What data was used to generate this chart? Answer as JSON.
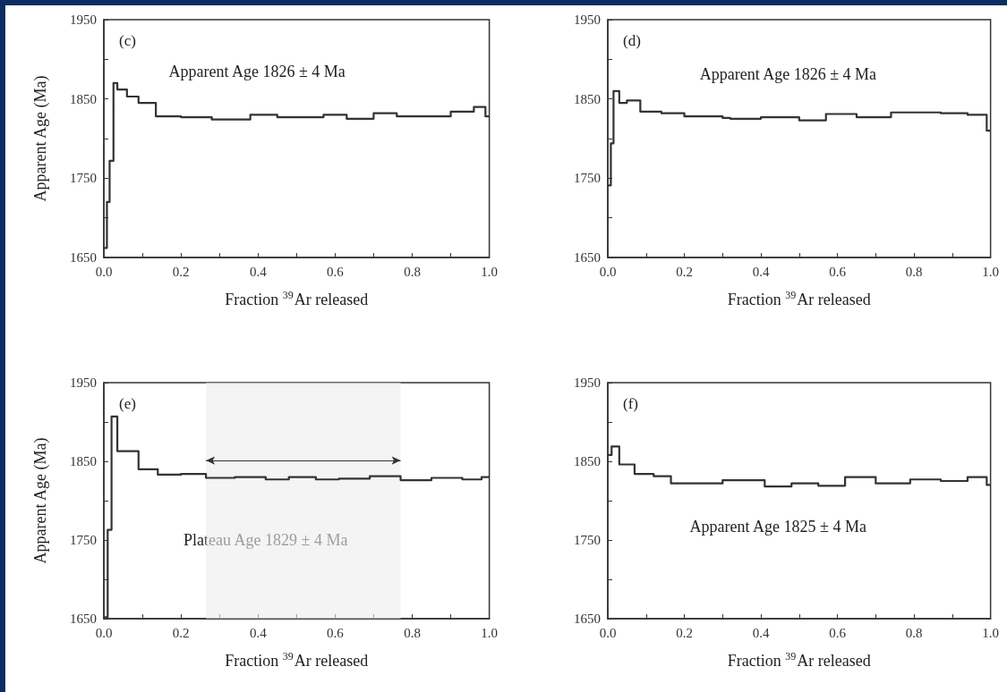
{
  "chart_data": [
    {
      "type": "step",
      "title": "(c)",
      "xlabel": "Fraction $^{39}$Ar released",
      "ylabel": "Apparent Age (Ma)",
      "annotations": [
        "Apparent Age 1826 ± 4 Ma"
      ],
      "series": [
        {
          "color": "#333333",
          "x": [
            0,
            0.008,
            0.015,
            0.025,
            0.035,
            0.06,
            0.09,
            0.135,
            0.2,
            0.28,
            0.38,
            0.45,
            0.5,
            0.57,
            0.63,
            0.7,
            0.76,
            0.83,
            0.9,
            0.96,
            0.99,
            1.0
          ],
          "values": [
            1662,
            1720,
            1772,
            1870,
            1862,
            1853,
            1845,
            1828,
            1827,
            1824,
            1830,
            1827,
            1827,
            1830,
            1825,
            1832,
            1828,
            1828,
            1834,
            1840,
            1828,
            1828
          ]
        }
      ],
      "xlim": [
        0,
        1
      ],
      "ylim": [
        1650,
        1950
      ],
      "xticks": [
        {
          "value": 0,
          "label": "0.0"
        },
        {
          "value": 0.1,
          "label": null
        },
        0.2,
        {
          "value": 0.3,
          "label": null
        },
        0.4,
        {
          "value": 0.5,
          "label": null
        },
        0.6,
        {
          "value": 0.7,
          "label": null
        },
        0.8,
        {
          "value": 0.9,
          "label": null
        },
        {
          "value": 1,
          "label": "1.0"
        }
      ],
      "yticks": [
        1650,
        {
          "value": 1700,
          "label": null
        },
        1750,
        {
          "value": 1800,
          "label": null
        },
        1850,
        {
          "value": 1900,
          "label": null
        },
        1950
      ]
    },
    {
      "type": "step",
      "title": "(d)",
      "xlabel": "Fraction $^{39}$Ar released",
      "annotations": [
        "Apparent Age 1826 ± 4 Ma"
      ],
      "series": [
        {
          "color": "#333333",
          "x": [
            0,
            0.008,
            0.015,
            0.03,
            0.05,
            0.085,
            0.14,
            0.2,
            0.3,
            0.32,
            0.4,
            0.5,
            0.57,
            0.65,
            0.74,
            0.87,
            0.94,
            0.99,
            1.0
          ],
          "values": [
            1741,
            1794,
            1860,
            1845,
            1848,
            1834,
            1832,
            1828,
            1826,
            1825,
            1827,
            1823,
            1831,
            1827,
            1833,
            1832,
            1830,
            1810,
            1810
          ]
        }
      ],
      "xlim": [
        0,
        1
      ],
      "ylim": [
        1650,
        1950
      ],
      "xticks": [
        {
          "value": 0,
          "label": "0.0"
        },
        {
          "value": 0.1,
          "label": null
        },
        0.2,
        {
          "value": 0.3,
          "label": null
        },
        0.4,
        {
          "value": 0.5,
          "label": null
        },
        0.6,
        {
          "value": 0.7,
          "label": null
        },
        0.8,
        {
          "value": 0.9,
          "label": null
        },
        {
          "value": 1,
          "label": "1.0"
        }
      ],
      "yticks": [
        1650,
        {
          "value": 1700,
          "label": null
        },
        1750,
        {
          "value": 1800,
          "label": null
        },
        1850,
        {
          "value": 1900,
          "label": null
        },
        1950
      ]
    },
    {
      "type": "step",
      "title": "(e)",
      "xlabel": "Fraction $^{39}$Ar released",
      "ylabel": "Apparent Age (Ma)",
      "bands": [
        {
          "axis": "x",
          "from": 0.265,
          "to": 0.77,
          "label": "Plateau Age 1829 ± 4 Ma"
        }
      ],
      "series": [
        {
          "color": "#333333",
          "x": [
            0,
            0.01,
            0.02,
            0.035,
            0.09,
            0.14,
            0.2,
            0.265,
            0.34,
            0.42,
            0.48,
            0.55,
            0.61,
            0.69,
            0.77,
            0.85,
            0.93,
            0.98,
            1.0
          ],
          "values": [
            1652,
            1763,
            1907,
            1863,
            1840,
            1833,
            1834,
            1829,
            1830,
            1827,
            1830,
            1827,
            1828,
            1831,
            1826,
            1829,
            1827,
            1830,
            1830
          ]
        }
      ],
      "xlim": [
        0,
        1
      ],
      "ylim": [
        1650,
        1950
      ],
      "xticks": [
        {
          "value": 0,
          "label": "0.0"
        },
        {
          "value": 0.1,
          "label": null
        },
        0.2,
        {
          "value": 0.3,
          "label": null
        },
        0.4,
        {
          "value": 0.5,
          "label": null
        },
        0.6,
        {
          "value": 0.7,
          "label": null
        },
        0.8,
        {
          "value": 0.9,
          "label": null
        },
        {
          "value": 1,
          "label": "1.0"
        }
      ],
      "yticks": [
        1650,
        {
          "value": 1700,
          "label": null
        },
        1750,
        {
          "value": 1800,
          "label": null
        },
        1850,
        {
          "value": 1900,
          "label": null
        },
        1950
      ]
    },
    {
      "type": "step",
      "title": "(f)",
      "xlabel": "Fraction $^{39}$Ar released",
      "annotations": [
        "Apparent Age 1825 ± 4 Ma"
      ],
      "series": [
        {
          "color": "#333333",
          "x": [
            0,
            0.01,
            0.03,
            0.07,
            0.12,
            0.165,
            0.22,
            0.3,
            0.41,
            0.48,
            0.55,
            0.62,
            0.7,
            0.79,
            0.87,
            0.94,
            0.99,
            1.0
          ],
          "values": [
            1858,
            1869,
            1846,
            1834,
            1831,
            1822,
            1822,
            1826,
            1818,
            1822,
            1819,
            1830,
            1822,
            1827,
            1825,
            1830,
            1820,
            1820
          ]
        }
      ],
      "xlim": [
        0,
        1
      ],
      "ylim": [
        1650,
        1950
      ],
      "xticks": [
        {
          "value": 0,
          "label": "0.0"
        },
        {
          "value": 0.1,
          "label": null
        },
        0.2,
        {
          "value": 0.3,
          "label": null
        },
        0.4,
        {
          "value": 0.5,
          "label": null
        },
        0.6,
        {
          "value": 0.7,
          "label": null
        },
        0.8,
        {
          "value": 0.9,
          "label": null
        },
        {
          "value": 1,
          "label": "1.0"
        }
      ],
      "yticks": [
        1650,
        {
          "value": 1700,
          "label": null
        },
        1750,
        {
          "value": 1800,
          "label": null
        },
        1850,
        {
          "value": 1900,
          "label": null
        },
        1950
      ]
    }
  ]
}
